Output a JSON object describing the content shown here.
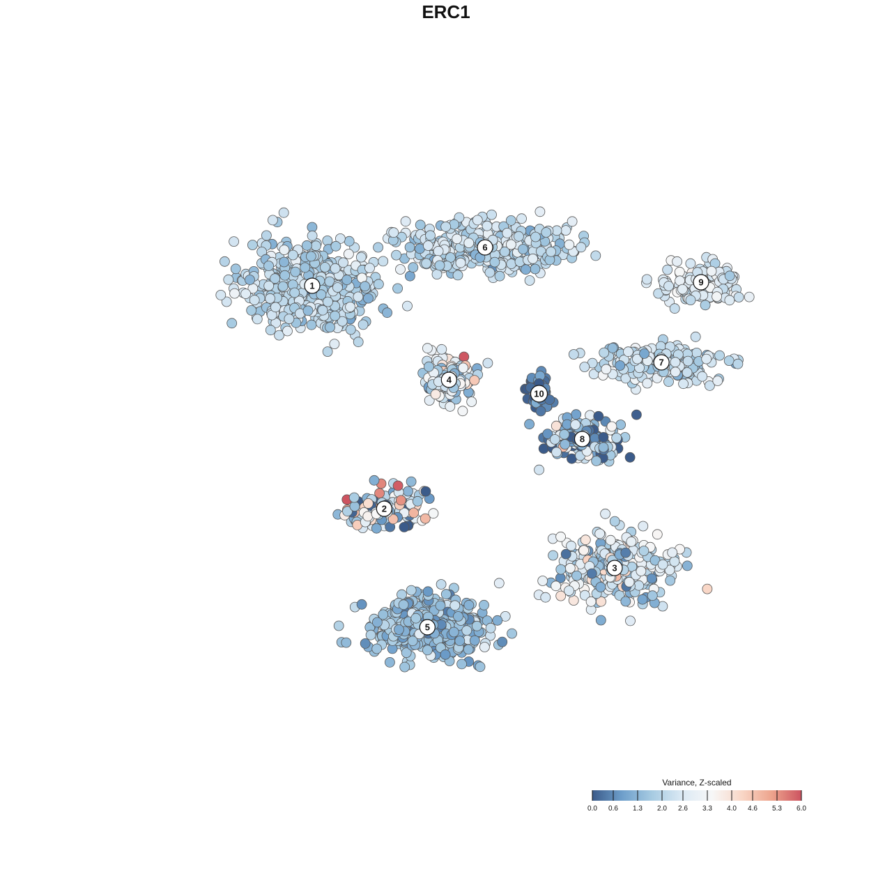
{
  "chart_data": {
    "type": "scatter",
    "title": "ERC1",
    "xlabel": "",
    "ylabel": "",
    "grid": false,
    "axes_visible": false,
    "color_scale": {
      "title": "Variance, Z-scaled",
      "min": 0,
      "max": 6,
      "ticks": [
        "0.0",
        "0.6",
        "1.3",
        "2.0",
        "2.6",
        "3.3",
        "4.0",
        "4.6",
        "5.3",
        "6.0"
      ],
      "palette": [
        "#3b5b8a",
        "#6e9fcb",
        "#a7cbe2",
        "#dbe9f4",
        "#f7f7f7",
        "#f9d7c7",
        "#eda48d",
        "#cd5460"
      ],
      "legend_placement": "bottom-right"
    },
    "clusters": [
      {
        "label": "1",
        "x": -4.2,
        "y": 4.6,
        "spread": [
          1.45,
          1.05
        ],
        "n": 520,
        "mean": 2.0,
        "sd": 0.45
      },
      {
        "label": "2",
        "x": -2.2,
        "y": -1.8,
        "spread": [
          0.9,
          0.45
        ],
        "n": 160,
        "mean": 2.3,
        "sd": 1.7
      },
      {
        "label": "3",
        "x": 4.2,
        "y": -3.5,
        "spread": [
          1.25,
          0.8
        ],
        "n": 330,
        "mean": 2.6,
        "sd": 0.9
      },
      {
        "label": "4",
        "x": -0.4,
        "y": 1.9,
        "spread": [
          0.55,
          0.55
        ],
        "n": 170,
        "mean": 2.6,
        "sd": 1.1
      },
      {
        "label": "5",
        "x": -1.0,
        "y": -5.2,
        "spread": [
          1.2,
          0.7
        ],
        "n": 520,
        "mean": 1.55,
        "sd": 0.5
      },
      {
        "label": "6",
        "x": 0.6,
        "y": 5.7,
        "spread": [
          1.95,
          0.55
        ],
        "n": 420,
        "mean": 2.15,
        "sd": 0.5
      },
      {
        "label": "7",
        "x": 5.5,
        "y": 2.4,
        "spread": [
          1.4,
          0.45
        ],
        "n": 190,
        "mean": 2.2,
        "sd": 0.5
      },
      {
        "label": "8",
        "x": 3.3,
        "y": 0.2,
        "spread": [
          0.95,
          0.5
        ],
        "n": 130,
        "mean": 1.4,
        "sd": 1.2
      },
      {
        "label": "9",
        "x": 6.6,
        "y": 4.7,
        "spread": [
          0.9,
          0.45
        ],
        "n": 140,
        "mean": 2.7,
        "sd": 0.4
      },
      {
        "label": "10",
        "x": 2.1,
        "y": 1.5,
        "spread": [
          0.25,
          0.35
        ],
        "n": 60,
        "mean": 0.35,
        "sd": 0.35
      }
    ],
    "xlim": [
      -9,
      9
    ],
    "ylim": [
      -9,
      9
    ]
  }
}
